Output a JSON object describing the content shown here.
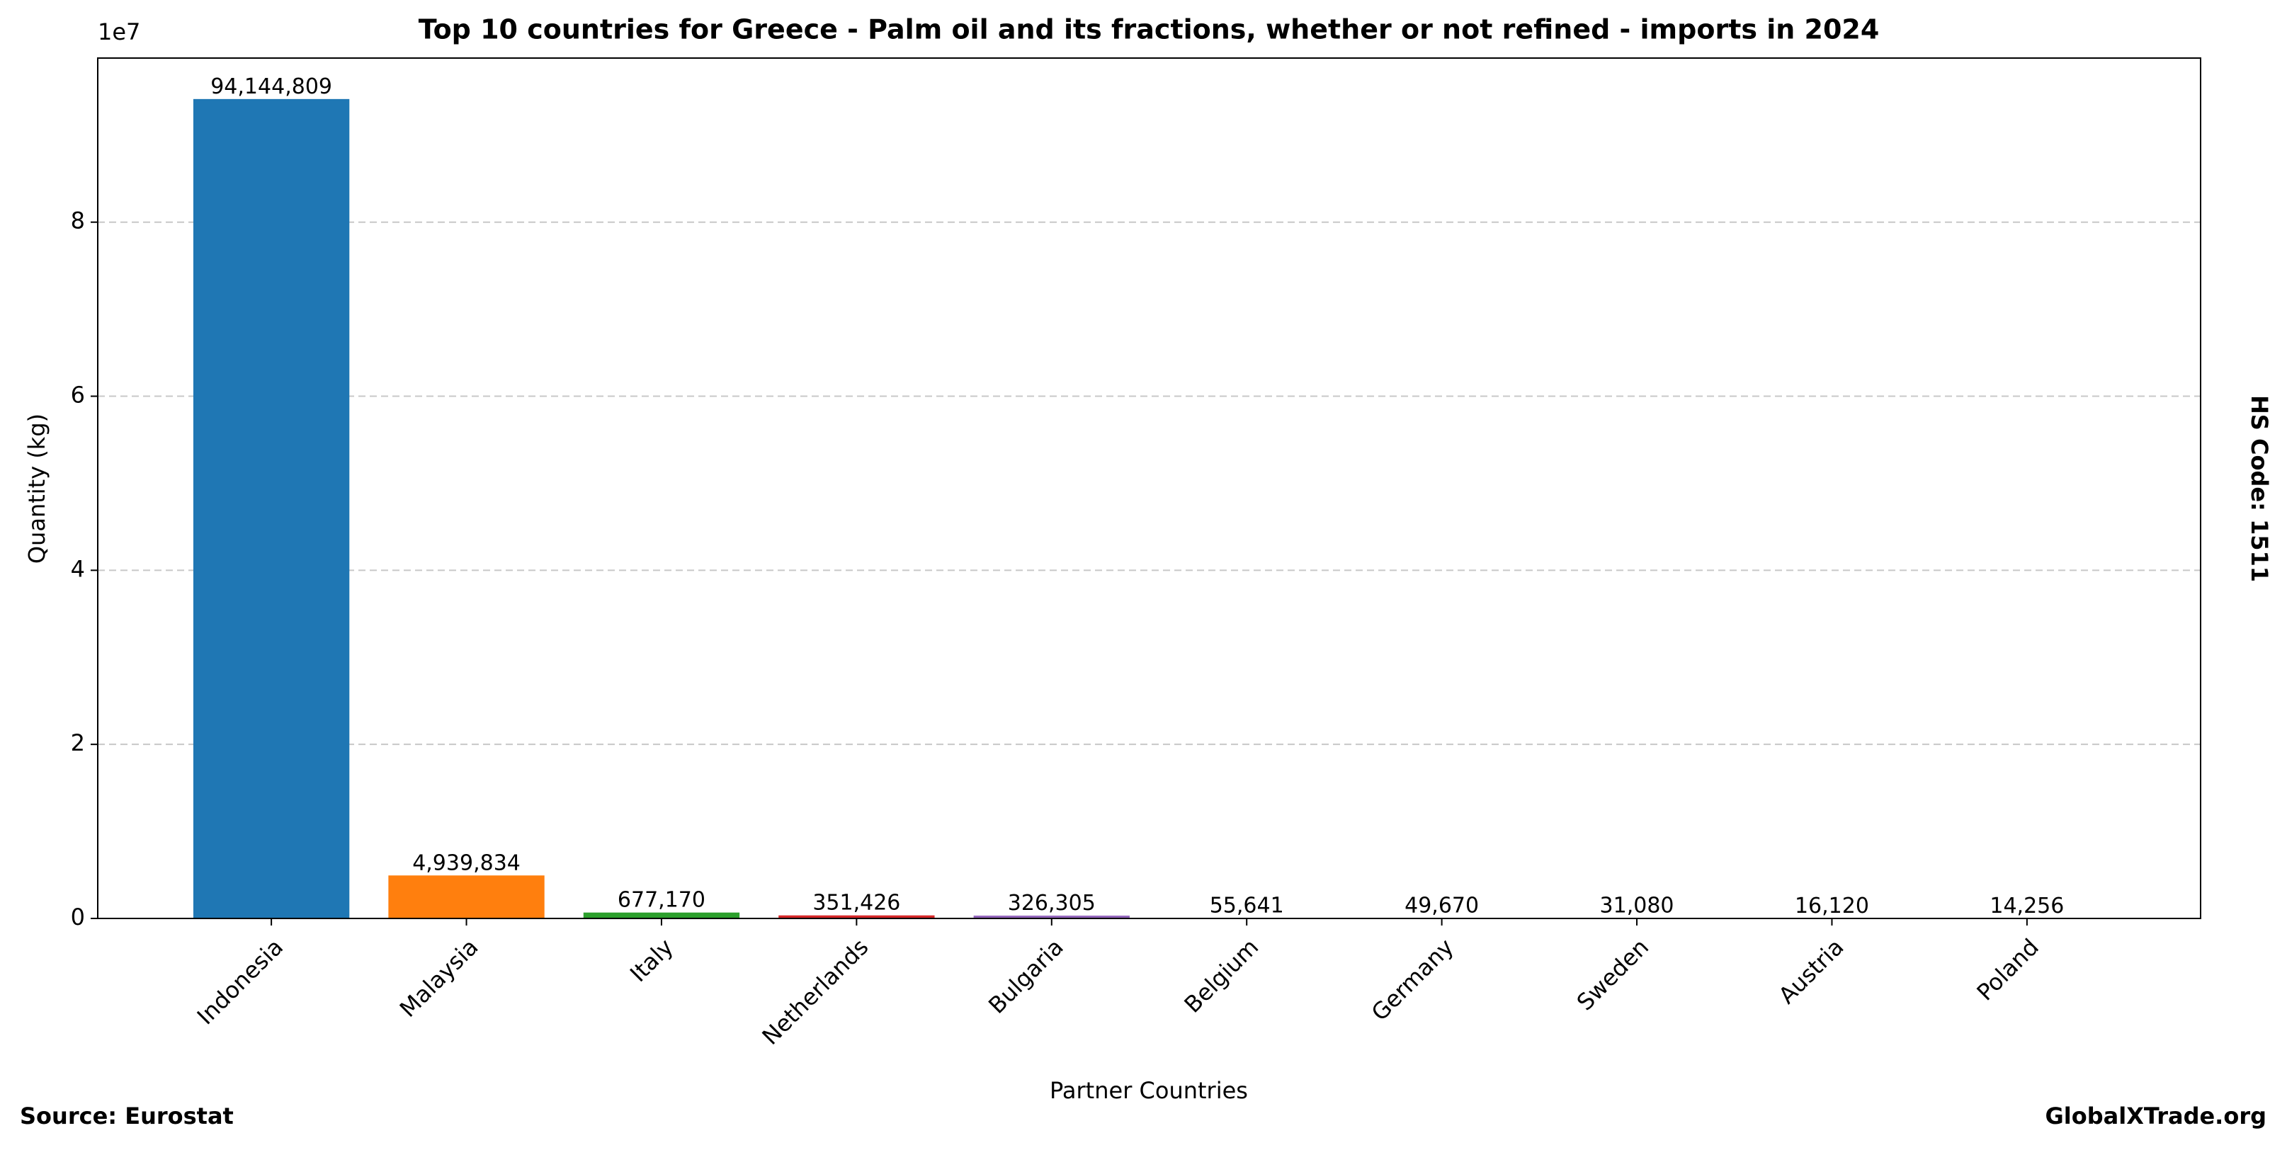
{
  "chart_data": {
    "type": "bar",
    "title": "Top 10 countries for Greece - Palm oil and its fractions, whether or not refined - imports in 2024",
    "x_label": "Partner Countries",
    "y_label": "Quantity (kg)",
    "y_offset_label": "1e7",
    "side_note": "HS Code: 1511",
    "source": "Source: Eurostat",
    "website": "GlobalXTrade.org",
    "categories": [
      "Indonesia",
      "Malaysia",
      "Italy",
      "Netherlands",
      "Bulgaria",
      "Belgium",
      "Germany",
      "Sweden",
      "Austria",
      "Poland"
    ],
    "values": [
      94144809,
      4939834,
      677170,
      351426,
      326305,
      55641,
      49670,
      31080,
      16120,
      14256
    ],
    "value_labels": [
      "94,144,809",
      "4,939,834",
      "677,170",
      "351,426",
      "326,305",
      "55,641",
      "49,670",
      "31,080",
      "16,120",
      "14,256"
    ],
    "colors": [
      "#1f77b4",
      "#ff7f0e",
      "#2ca02c",
      "#d62728",
      "#9467bd",
      "#8c564b",
      "#e377c2",
      "#7f7f7f",
      "#bcbd22",
      "#17becf"
    ],
    "ylim": [
      0,
      98852049
    ],
    "yticks": [
      0,
      {
        "value": 20000000,
        "label": "2"
      },
      {
        "value": 40000000,
        "label": "4"
      },
      {
        "value": 60000000,
        "label": "6"
      },
      {
        "value": 80000000,
        "label": "8"
      }
    ],
    "grid": true
  }
}
